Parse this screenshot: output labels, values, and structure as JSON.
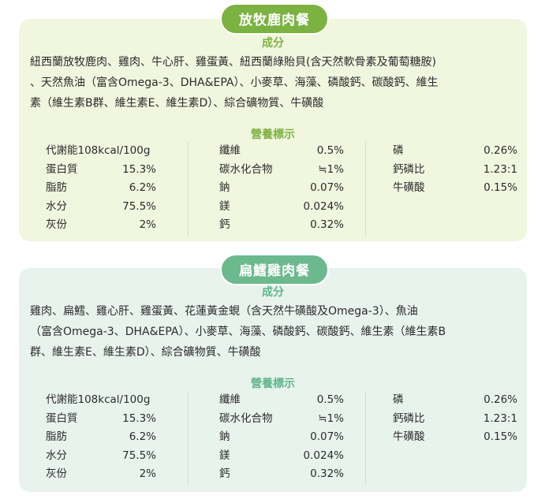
{
  "section1": {
    "title": "放牧鹿肉餐",
    "ingredients_heading": "成分",
    "ingredients_lines": [
      "紐西蘭放牧鹿肉、雞肉、牛心肝、雞蛋黃、紐西蘭綠貽貝(含天然軟骨素及葡萄糖胺)",
      "、天然魚油（富含Omega-3、DHA&EPA）、小麥草、海藻、磷酸鈣、碳酸鈣、維生",
      "素（維生素B群、維生素E、維生素D）、綜合礦物質、牛磺酸"
    ],
    "nutrition_heading": "營養標示",
    "col1": [
      {
        "label": "代謝能108kcal/100g",
        "value": ""
      },
      {
        "label": "蛋白質",
        "value": "15.3%"
      },
      {
        "label": "脂肪",
        "value": "6.2%"
      },
      {
        "label": "水分",
        "value": "75.5%"
      },
      {
        "label": "灰份",
        "value": "2%"
      }
    ],
    "col2": [
      {
        "label": "纖維",
        "value": "0.5%"
      },
      {
        "label": "碳水化合物",
        "value": "≒1%"
      },
      {
        "label": "鈉",
        "value": "0.07%"
      },
      {
        "label": "鎂",
        "value": "0.024%"
      },
      {
        "label": "鈣",
        "value": "0.32%"
      }
    ],
    "col3": [
      {
        "label": "磷",
        "value": "0.26%"
      },
      {
        "label": "鈣磷比",
        "value": "1.23:1"
      },
      {
        "label": "牛磺酸",
        "value": "0.15%"
      }
    ]
  },
  "section2": {
    "title": "扁鱈雞肉餐",
    "ingredients_heading": "成分",
    "ingredients_lines": [
      "雞肉、扁鱈、雞心肝、雞蛋黃、花蓮黃金蜆（含天然牛磺酸及Omega-3）、魚油",
      "（富含Omega-3、DHA&EPA）、小麥草、海藻、磷酸鈣、碳酸鈣、維生素（維生素B",
      "群、維生素E、維生素D）、綜合礦物質、牛磺酸"
    ],
    "nutrition_heading": "營養標示",
    "col1": [
      {
        "label": "代謝能108kcal/100g",
        "value": ""
      },
      {
        "label": "蛋白質",
        "value": "15.3%"
      },
      {
        "label": "脂肪",
        "value": "6.2%"
      },
      {
        "label": "水分",
        "value": "75.5%"
      },
      {
        "label": "灰份",
        "value": "2%"
      }
    ],
    "col2": [
      {
        "label": "纖維",
        "value": "0.5%"
      },
      {
        "label": "碳水化合物",
        "value": "≒1%"
      },
      {
        "label": "鈉",
        "value": "0.07%"
      },
      {
        "label": "鎂",
        "value": "0.024%"
      },
      {
        "label": "鈣",
        "value": "0.32%"
      }
    ],
    "col3": [
      {
        "label": "磷",
        "value": "0.26%"
      },
      {
        "label": "鈣磷比",
        "value": "1.23:1"
      },
      {
        "label": "牛磺酸",
        "value": "0.15%"
      }
    ]
  },
  "colors": {
    "section1_accent": "#7cb241",
    "section1_bg": "#f1f6df",
    "section2_accent": "#6cb98d",
    "section2_bg": "#e9f3ee"
  }
}
